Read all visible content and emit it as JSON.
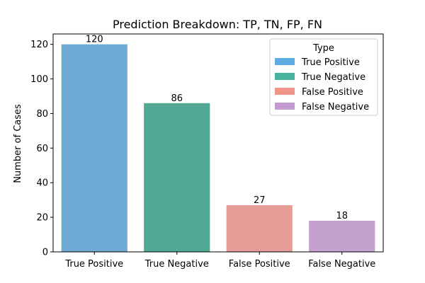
{
  "chart_data": {
    "type": "bar",
    "title": "Prediction Breakdown: TP, TN, FP, FN",
    "xlabel": "",
    "ylabel": "Number of Cases",
    "categories": [
      "True Positive",
      "True Negative",
      "False Positive",
      "False Negative"
    ],
    "values": [
      120,
      86,
      27,
      18
    ],
    "value_labels": [
      "120",
      "86",
      "27",
      "18"
    ],
    "bar_colors": [
      "#6faad4",
      "#52a795",
      "#e59c97",
      "#c2a1cf"
    ],
    "ylim": [
      0,
      126
    ],
    "yticks": [
      0,
      20,
      40,
      60,
      80,
      100,
      120
    ],
    "grid": false,
    "legend": {
      "title": "Type",
      "placement": "top-right",
      "entries": [
        "True Positive",
        "True Negative",
        "False Positive",
        "False Negative"
      ],
      "colors": [
        "#5dade2",
        "#45b39d",
        "#f1948a",
        "#c39bd3"
      ]
    }
  }
}
